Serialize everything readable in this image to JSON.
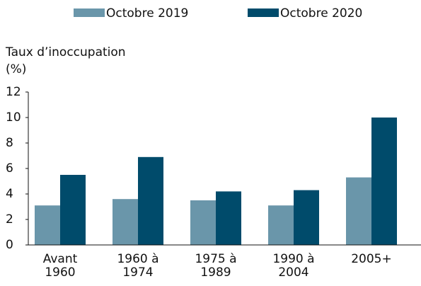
{
  "chart_data": {
    "type": "bar",
    "y_label": "Taux d’inoccupation (%)",
    "categories": [
      "Avant 1960",
      "1960 à 1974",
      "1975 à 1989",
      "1990 à 2004",
      "2005+"
    ],
    "series": [
      {
        "name": "Octobre 2019",
        "color": "#6a96aa",
        "values": [
          3.1,
          3.6,
          3.5,
          3.1,
          5.3
        ]
      },
      {
        "name": "Octobre 2020",
        "color": "#004b6b",
        "values": [
          5.5,
          6.9,
          4.2,
          4.3,
          10.0
        ]
      }
    ],
    "ylim": [
      0,
      12
    ],
    "yticks": [
      0,
      2,
      4,
      6,
      8,
      10,
      12
    ],
    "grid": false,
    "legend": "top"
  }
}
